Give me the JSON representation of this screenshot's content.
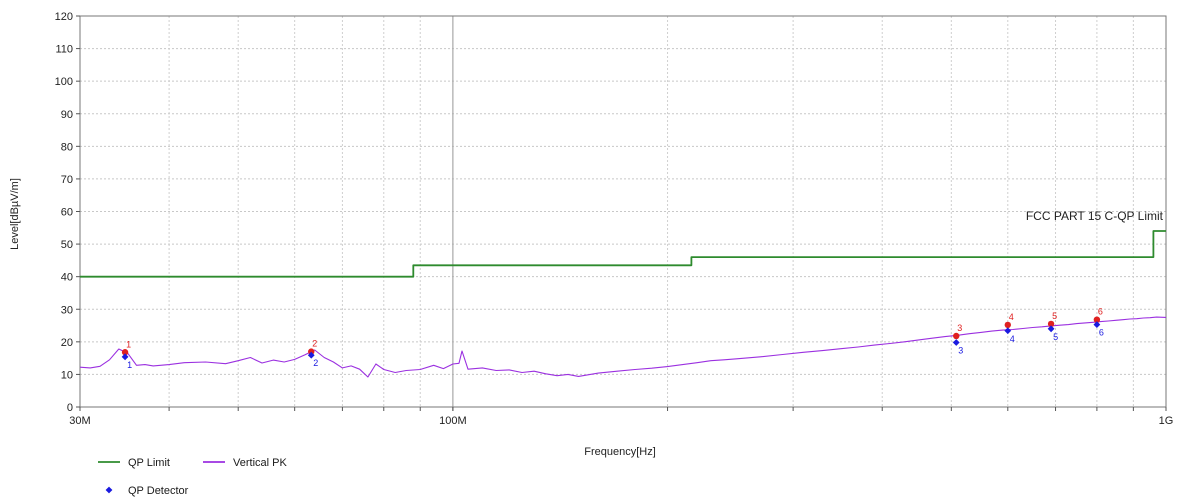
{
  "chart_data": {
    "type": "line",
    "xlabel": "Frequency[Hz]",
    "ylabel": "Level[dBµV/m]",
    "x_scale": "log",
    "xlim": [
      30000000,
      1000000000
    ],
    "ylim": [
      0,
      120
    ],
    "y_ticks": [
      0,
      10,
      20,
      30,
      40,
      50,
      60,
      70,
      80,
      90,
      100,
      110,
      120
    ],
    "x_tick_labels": [
      {
        "value": 30000000,
        "label": "30M"
      },
      {
        "value": 100000000,
        "label": "100M"
      },
      {
        "value": 1000000000,
        "label": "1G"
      }
    ],
    "grid": true,
    "limit_label": "FCC PART 15 C-QP Limit",
    "series": [
      {
        "name": "QP Limit",
        "color": "#2e8b2e",
        "step": true,
        "points": [
          [
            30000000,
            40
          ],
          [
            88000000,
            40
          ],
          [
            88000000,
            43.5
          ],
          [
            216000000,
            43.5
          ],
          [
            216000000,
            46
          ],
          [
            960000000,
            46
          ],
          [
            960000000,
            54
          ],
          [
            1000000000,
            54
          ]
        ]
      },
      {
        "name": "Vertical PK",
        "color": "#9b30e0",
        "points": [
          [
            30000000,
            12.2
          ],
          [
            31000000,
            12.0
          ],
          [
            32000000,
            12.5
          ],
          [
            33000000,
            14.5
          ],
          [
            34000000,
            17.8
          ],
          [
            35000000,
            16.5
          ],
          [
            36000000,
            12.8
          ],
          [
            37000000,
            13.0
          ],
          [
            38000000,
            12.6
          ],
          [
            40000000,
            13.0
          ],
          [
            42000000,
            13.6
          ],
          [
            45000000,
            13.8
          ],
          [
            48000000,
            13.3
          ],
          [
            50000000,
            14.2
          ],
          [
            52000000,
            15.2
          ],
          [
            54000000,
            13.5
          ],
          [
            56000000,
            14.4
          ],
          [
            58000000,
            13.8
          ],
          [
            60000000,
            14.6
          ],
          [
            62000000,
            16.0
          ],
          [
            64000000,
            17.5
          ],
          [
            66000000,
            15.2
          ],
          [
            68000000,
            13.8
          ],
          [
            70000000,
            12.0
          ],
          [
            72000000,
            12.6
          ],
          [
            74000000,
            11.6
          ],
          [
            76000000,
            9.2
          ],
          [
            78000000,
            13.2
          ],
          [
            80000000,
            11.5
          ],
          [
            83000000,
            10.6
          ],
          [
            86000000,
            11.2
          ],
          [
            90000000,
            11.5
          ],
          [
            94000000,
            12.8
          ],
          [
            97000000,
            11.8
          ],
          [
            100000000,
            13.2
          ],
          [
            102000000,
            13.4
          ],
          [
            103000000,
            17.2
          ],
          [
            105000000,
            11.6
          ],
          [
            110000000,
            12.0
          ],
          [
            115000000,
            11.2
          ],
          [
            120000000,
            11.4
          ],
          [
            125000000,
            10.6
          ],
          [
            130000000,
            11.0
          ],
          [
            135000000,
            10.2
          ],
          [
            140000000,
            9.6
          ],
          [
            145000000,
            10.0
          ],
          [
            150000000,
            9.4
          ],
          [
            160000000,
            10.4
          ],
          [
            170000000,
            11.0
          ],
          [
            180000000,
            11.5
          ],
          [
            190000000,
            11.9
          ],
          [
            200000000,
            12.4
          ],
          [
            210000000,
            13.0
          ],
          [
            220000000,
            13.6
          ],
          [
            230000000,
            14.2
          ],
          [
            240000000,
            14.5
          ],
          [
            250000000,
            14.8
          ],
          [
            270000000,
            15.4
          ],
          [
            290000000,
            16.1
          ],
          [
            310000000,
            16.8
          ],
          [
            330000000,
            17.3
          ],
          [
            350000000,
            17.9
          ],
          [
            370000000,
            18.4
          ],
          [
            390000000,
            19.0
          ],
          [
            410000000,
            19.5
          ],
          [
            430000000,
            20.0
          ],
          [
            450000000,
            20.6
          ],
          [
            470000000,
            21.1
          ],
          [
            490000000,
            21.6
          ],
          [
            510000000,
            22.0
          ],
          [
            530000000,
            22.5
          ],
          [
            550000000,
            22.9
          ],
          [
            570000000,
            23.3
          ],
          [
            590000000,
            23.6
          ],
          [
            610000000,
            23.8
          ],
          [
            630000000,
            24.1
          ],
          [
            650000000,
            24.4
          ],
          [
            670000000,
            24.6
          ],
          [
            690000000,
            24.9
          ],
          [
            710000000,
            25.1
          ],
          [
            730000000,
            25.3
          ],
          [
            750000000,
            25.6
          ],
          [
            770000000,
            25.8
          ],
          [
            790000000,
            26.0
          ],
          [
            810000000,
            26.2
          ],
          [
            830000000,
            26.4
          ],
          [
            850000000,
            26.6
          ],
          [
            870000000,
            26.8
          ],
          [
            890000000,
            27.0
          ],
          [
            910000000,
            27.1
          ],
          [
            930000000,
            27.3
          ],
          [
            950000000,
            27.4
          ],
          [
            970000000,
            27.6
          ],
          [
            1000000000,
            27.5
          ]
        ]
      }
    ],
    "markers": {
      "name": "QP Detector",
      "color": "#1a1ae0",
      "peak_color": "#e02020",
      "points": [
        {
          "label": "1",
          "x": 34700000,
          "peak": 16.8,
          "qp": 15.4
        },
        {
          "label": "2",
          "x": 63300000,
          "peak": 17.0,
          "qp": 15.9
        },
        {
          "label": "3",
          "x": 508000000,
          "peak": 21.8,
          "qp": 19.8
        },
        {
          "label": "4",
          "x": 600000000,
          "peak": 25.2,
          "qp": 23.4
        },
        {
          "label": "5",
          "x": 690000000,
          "peak": 25.5,
          "qp": 24.0
        },
        {
          "label": "6",
          "x": 800000000,
          "peak": 26.8,
          "qp": 25.3
        }
      ]
    },
    "legend": [
      {
        "label": "QP Limit",
        "kind": "line",
        "color": "#2e8b2e"
      },
      {
        "label": "Vertical PK",
        "kind": "line",
        "color": "#9b30e0"
      },
      {
        "label": "QP Detector",
        "kind": "diamond",
        "color": "#1a1ae0"
      }
    ]
  }
}
